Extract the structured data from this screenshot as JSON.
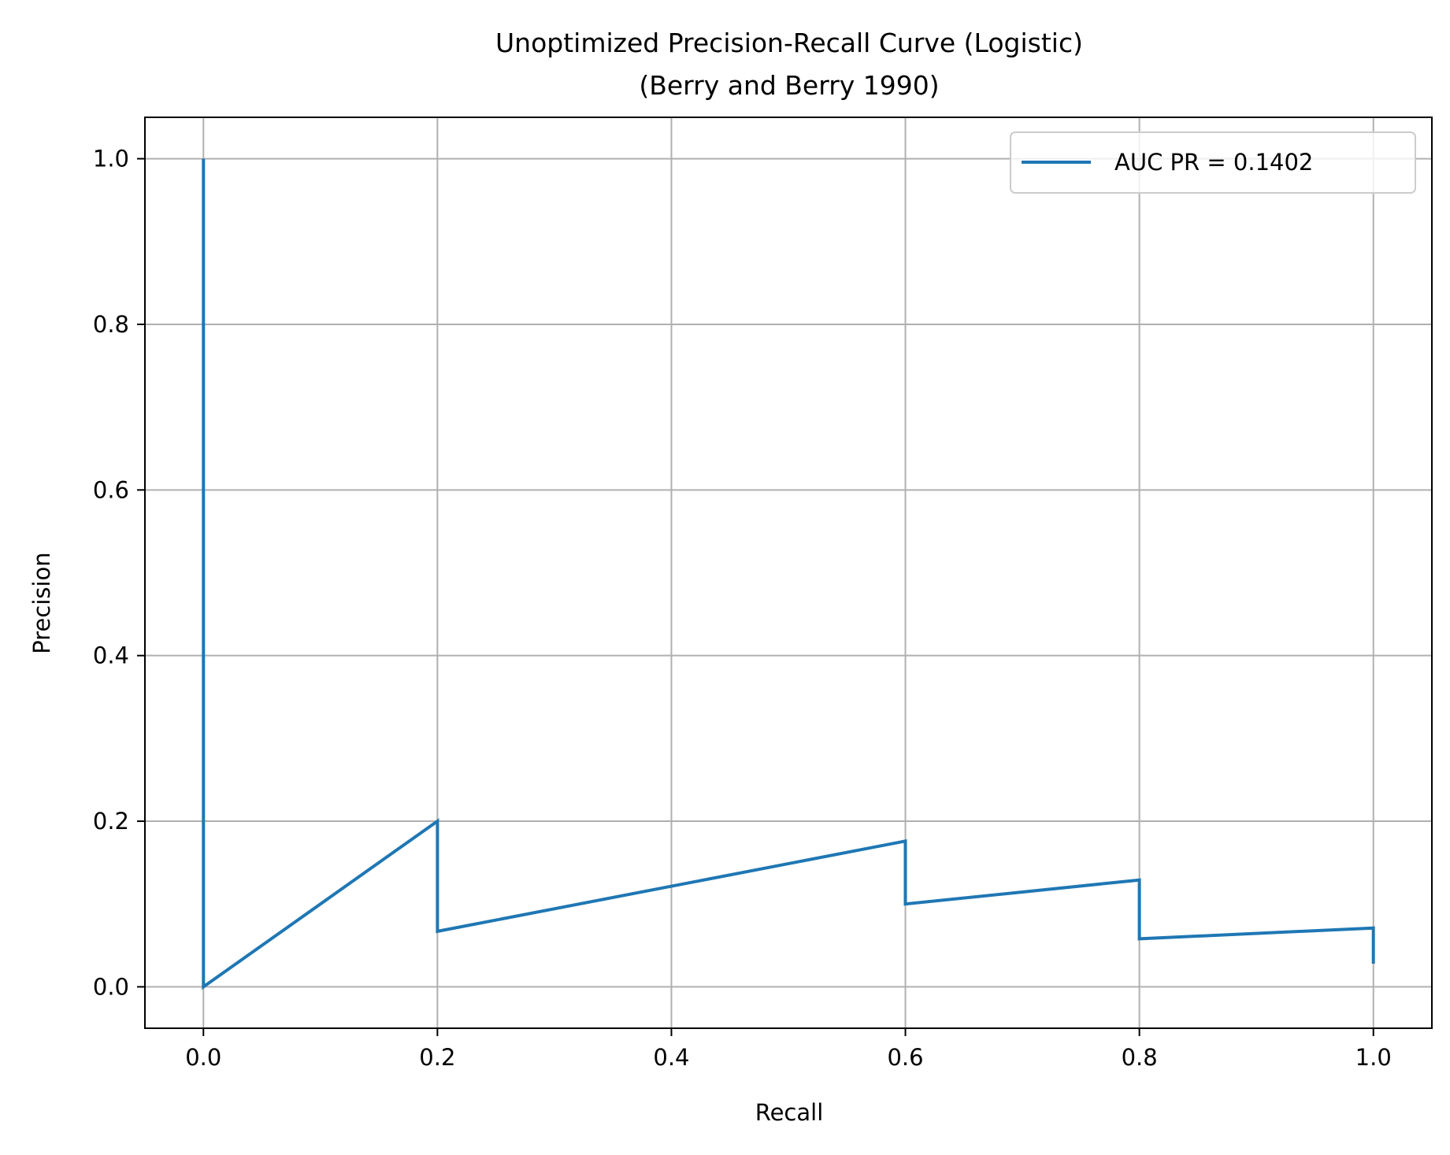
{
  "chart_data": {
    "type": "line",
    "title_lines": [
      "Unoptimized Precision-Recall Curve (Logistic)",
      "(Berry and Berry 1990)"
    ],
    "xlabel": "Recall",
    "ylabel": "Precision",
    "xlim": [
      -0.05,
      1.05
    ],
    "ylim": [
      -0.05,
      1.05
    ],
    "x_ticks": [
      "0.0",
      "0.2",
      "0.4",
      "0.6",
      "0.8",
      "1.0"
    ],
    "y_ticks": [
      "0.0",
      "0.2",
      "0.4",
      "0.6",
      "0.8",
      "1.0"
    ],
    "x_tick_values": [
      0.0,
      0.2,
      0.4,
      0.6,
      0.8,
      1.0
    ],
    "y_tick_values": [
      0.0,
      0.2,
      0.4,
      0.6,
      0.8,
      1.0
    ],
    "grid": true,
    "legend_position": "top-right",
    "series": [
      {
        "name": "AUC PR = 0.1402",
        "color": "#1f77b4",
        "points": [
          [
            0.0,
            1.0
          ],
          [
            0.0,
            0.0
          ],
          [
            0.2,
            0.2
          ],
          [
            0.2,
            0.067
          ],
          [
            0.6,
            0.176
          ],
          [
            0.6,
            0.1
          ],
          [
            0.8,
            0.129
          ],
          [
            0.8,
            0.058
          ],
          [
            1.0,
            0.071
          ],
          [
            1.0,
            0.028
          ]
        ]
      }
    ]
  }
}
